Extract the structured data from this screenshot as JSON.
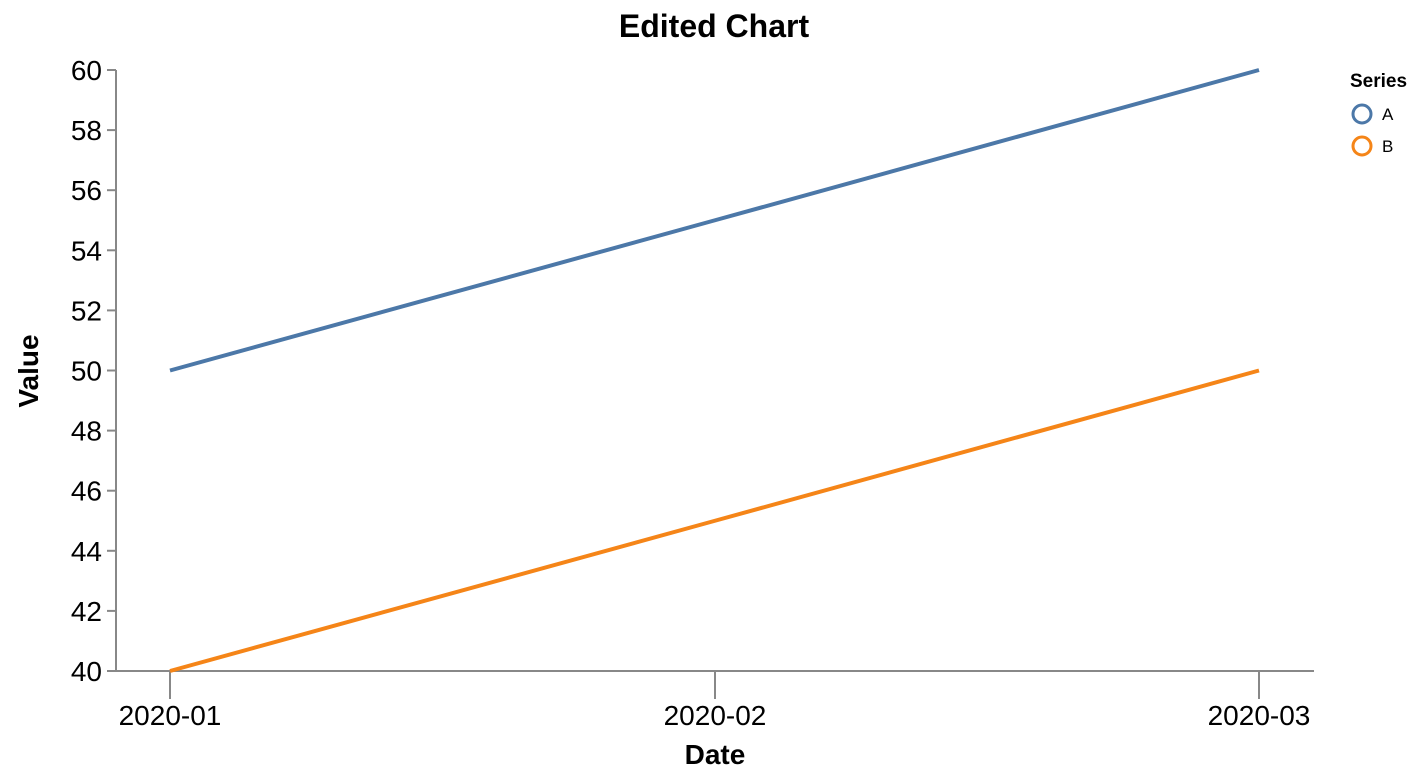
{
  "chart_data": {
    "type": "line",
    "title": "Edited Chart",
    "xlabel": "Date",
    "ylabel": "Value",
    "x": [
      "2020-01",
      "2020-02",
      "2020-03"
    ],
    "ylim": [
      40,
      60
    ],
    "yticks": [
      40,
      42,
      44,
      46,
      48,
      50,
      52,
      54,
      56,
      58,
      60
    ],
    "grid": false,
    "legend": {
      "title": "Series",
      "placement": "top-right"
    },
    "series": [
      {
        "name": "A",
        "color": "#4c78a8",
        "values": [
          50,
          55,
          60
        ]
      },
      {
        "name": "B",
        "color": "#f58518",
        "values": [
          40,
          45,
          50
        ]
      }
    ]
  }
}
